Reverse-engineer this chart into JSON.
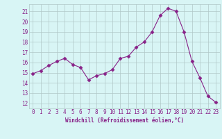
{
  "x": [
    0,
    1,
    2,
    3,
    4,
    5,
    6,
    7,
    8,
    9,
    10,
    11,
    12,
    13,
    14,
    15,
    16,
    17,
    18,
    19,
    20,
    21,
    22,
    23
  ],
  "y": [
    14.9,
    15.2,
    15.7,
    16.1,
    16.4,
    15.8,
    15.5,
    14.3,
    14.7,
    14.9,
    15.3,
    16.4,
    16.6,
    17.5,
    18.0,
    19.0,
    20.6,
    21.3,
    21.0,
    19.0,
    16.1,
    14.5,
    12.7,
    12.1
  ],
  "line_color": "#882288",
  "marker": "D",
  "marker_size": 2.5,
  "bg_color": "#d8f5f5",
  "grid_color": "#b0c8c8",
  "xlabel": "Windchill (Refroidissement éolien,°C)",
  "xlabel_color": "#882288",
  "tick_color": "#882288",
  "ylim": [
    11.5,
    21.7
  ],
  "xlim": [
    -0.5,
    23.5
  ],
  "yticks": [
    12,
    13,
    14,
    15,
    16,
    17,
    18,
    19,
    20,
    21
  ],
  "xticks": [
    0,
    1,
    2,
    3,
    4,
    5,
    6,
    7,
    8,
    9,
    10,
    11,
    12,
    13,
    14,
    15,
    16,
    17,
    18,
    19,
    20,
    21,
    22,
    23
  ]
}
